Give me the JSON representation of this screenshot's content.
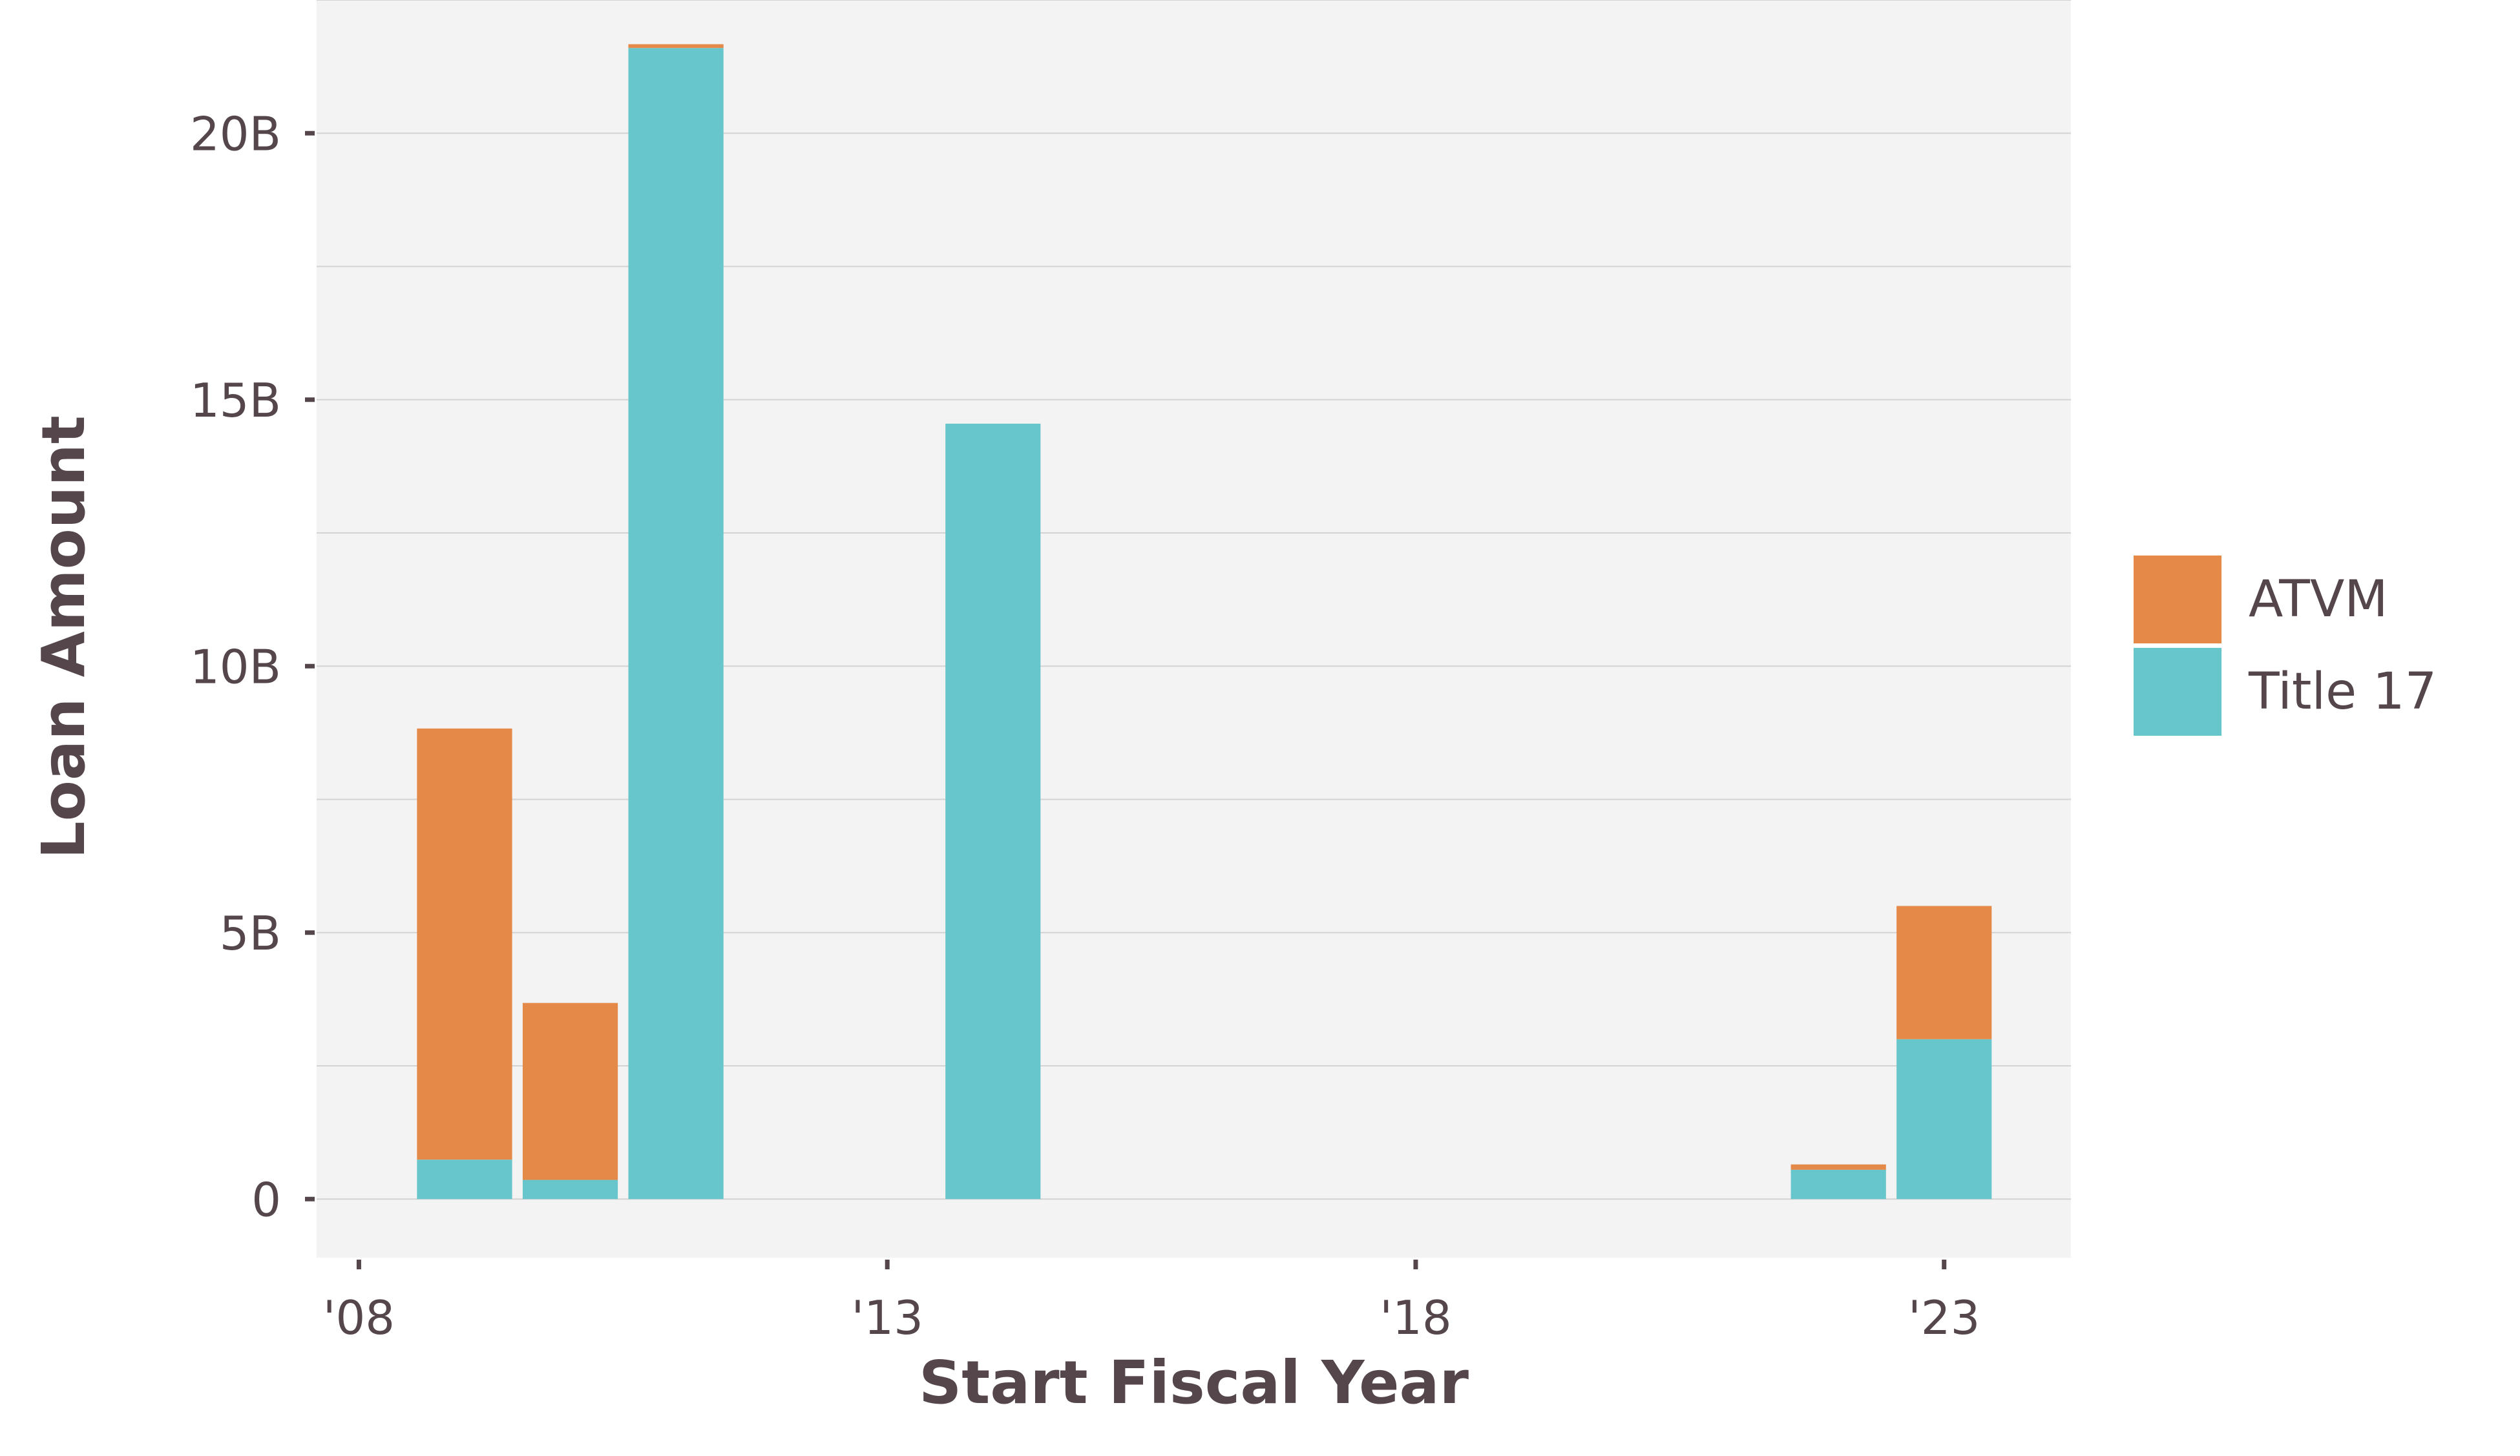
{
  "colors": {
    "panel_background": "#f3f3f3",
    "gridline": "#d3d3d3",
    "text": "#54464b",
    "atvm": "#e48947",
    "title17": "#67c6cb"
  },
  "chart_data": {
    "type": "bar",
    "stacked": true,
    "title": "",
    "xlabel": "Start Fiscal Year",
    "ylabel": "Loan Amount",
    "xlim": [
      2007.6,
      2024.2
    ],
    "ylim": [
      -1.1,
      22.5
    ],
    "y_unit": "billions",
    "x_ticks": [
      {
        "value": 2008,
        "label": "'08"
      },
      {
        "value": 2013,
        "label": "'13"
      },
      {
        "value": 2018,
        "label": "'18"
      },
      {
        "value": 2023,
        "label": "'23"
      }
    ],
    "y_ticks": [
      {
        "value": 0,
        "label": "0"
      },
      {
        "value": 5,
        "label": "5B"
      },
      {
        "value": 10,
        "label": "10B"
      },
      {
        "value": 15,
        "label": "15B"
      },
      {
        "value": 20,
        "label": "20B"
      }
    ],
    "minor_y_gridlines": [
      2.5,
      7.5,
      12.5,
      17.5,
      22.5
    ],
    "grid": true,
    "legend_position": "right",
    "categories": [
      2009,
      2010,
      2011,
      2014,
      2022,
      2023
    ],
    "series": [
      {
        "name": "Title 17",
        "color_key": "title17",
        "values": [
          0.74,
          0.36,
          21.6,
          14.55,
          0.55,
          3.0
        ]
      },
      {
        "name": "ATVM",
        "color_key": "atvm",
        "values": [
          8.09,
          3.32,
          0.07,
          0.0,
          0.1,
          2.5
        ]
      }
    ],
    "legend": [
      {
        "name": "ATVM",
        "color_key": "atvm"
      },
      {
        "name": "Title 17",
        "color_key": "title17"
      }
    ]
  }
}
